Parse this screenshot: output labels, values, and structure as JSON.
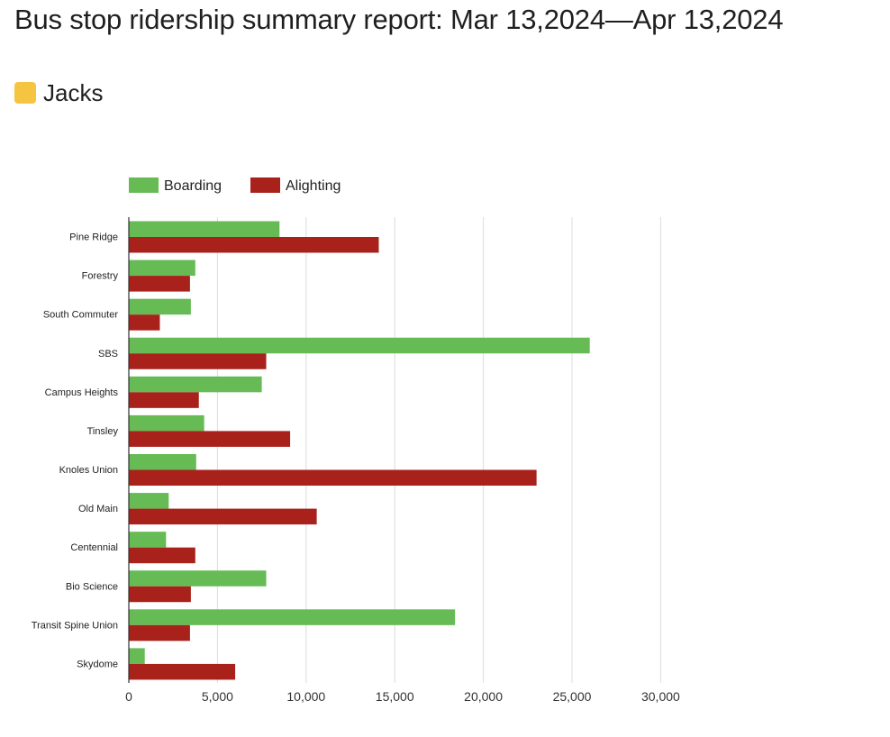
{
  "report": {
    "title": "Bus stop ridership summary report: Mar 13,2024—Apr 13,2024"
  },
  "route": {
    "name": "Jacks",
    "color": "#f5c542"
  },
  "chart_data": {
    "type": "bar",
    "orientation": "horizontal",
    "categories": [
      "Pine Ridge",
      "Forestry",
      "South Commuter",
      "SBS",
      "Campus Heights",
      "Tinsley",
      "Knoles Union",
      "Old Main",
      "Centennial",
      "Bio Science",
      "Transit Spine Union",
      "Skydome"
    ],
    "series": [
      {
        "name": "Boarding",
        "color": "#66bb55",
        "values": [
          8500,
          3750,
          3500,
          26000,
          7500,
          4250,
          3800,
          2250,
          2100,
          7750,
          18400,
          900
        ]
      },
      {
        "name": "Alighting",
        "color": "#a8211b",
        "values": [
          14100,
          3450,
          1750,
          7750,
          3950,
          9100,
          23000,
          10600,
          3750,
          3500,
          3450,
          6000
        ]
      }
    ],
    "xlim": [
      0,
      30000
    ],
    "xticks": [
      0,
      5000,
      10000,
      15000,
      20000,
      25000,
      30000
    ],
    "xtick_labels": [
      "0",
      "5,000",
      "10,000",
      "15,000",
      "20,000",
      "25,000",
      "30,000"
    ],
    "grid": true,
    "legend": "top-left",
    "title": "",
    "xlabel": "",
    "ylabel": ""
  }
}
